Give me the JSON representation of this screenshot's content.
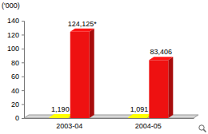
{
  "chart_data": {
    "type": "bar",
    "y_label": "('000)",
    "categories": [
      "2003-04",
      "2004-05"
    ],
    "series": [
      {
        "color": "#ffff00",
        "values": [
          1.19,
          1.091
        ],
        "value_labels": [
          "1,190",
          "1,091"
        ]
      },
      {
        "color": "#ee1111",
        "values": [
          124.125,
          83.406
        ],
        "value_labels": [
          "124,125*",
          "83,406"
        ]
      }
    ],
    "ylim": [
      0,
      140
    ],
    "yticks": [
      0,
      20,
      40,
      60,
      80,
      100,
      120,
      140
    ],
    "grid": false,
    "data_labels": true
  }
}
